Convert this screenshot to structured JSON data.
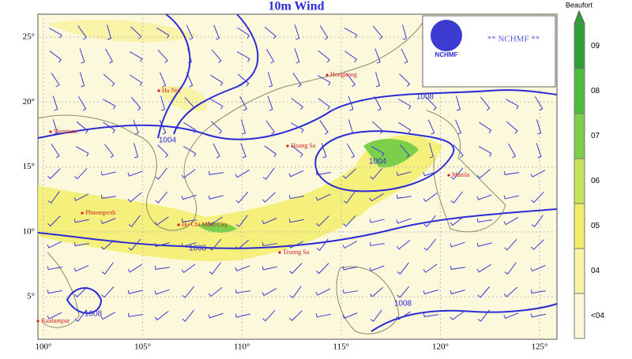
{
  "title": "10m Wind",
  "lon_ticks": [
    "100°",
    "105°",
    "110°",
    "115°",
    "120°",
    "125°"
  ],
  "lat_ticks": [
    "25°",
    "20°",
    "15°",
    "10°",
    "5°"
  ],
  "logo": {
    "name": "NCHMF",
    "text": "** NCHMF **"
  },
  "legend": {
    "title": "Beaufort",
    "levels": [
      {
        "label": "09",
        "color": "#2e9e36"
      },
      {
        "label": "08",
        "color": "#4cbc3c"
      },
      {
        "label": "07",
        "color": "#7ccf4a"
      },
      {
        "label": "06",
        "color": "#c6e35a"
      },
      {
        "label": "05",
        "color": "#f3ee6a"
      },
      {
        "label": "04",
        "color": "#f8f3a6"
      },
      {
        "label": "<04",
        "color": "#fbf8dc"
      }
    ]
  },
  "cities": [
    "Hongkong",
    "Ha Noi",
    "Vientiane",
    "Hoang Sa",
    "Manila",
    "Phnompenh",
    "Ho Chi Minh City",
    "Truong Sa",
    "Kualumpur"
  ],
  "isobar_labels": [
    "1004",
    "1004",
    "1008",
    "1008",
    "1008",
    "1008"
  ]
}
